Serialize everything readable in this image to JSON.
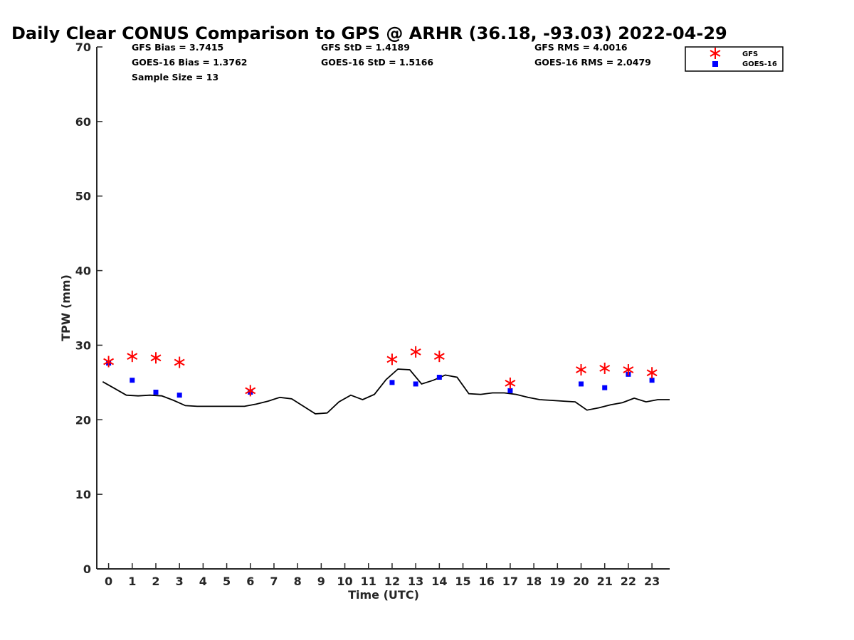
{
  "chart_data": {
    "type": "scatter",
    "title": "Daily Clear CONUS Comparison to GPS @ ARHR (36.18, -93.03) 2022-04-29",
    "xlabel": "Time (UTC)",
    "ylabel": "TPW (mm)",
    "xlim": [
      -0.5,
      23.75
    ],
    "ylim": [
      0,
      70
    ],
    "x_ticks": [
      0,
      1,
      2,
      3,
      4,
      5,
      6,
      7,
      8,
      9,
      10,
      11,
      12,
      13,
      14,
      15,
      16,
      17,
      18,
      19,
      20,
      21,
      22,
      23
    ],
    "y_ticks": [
      0,
      10,
      20,
      30,
      40,
      50,
      60,
      70
    ],
    "grid": false,
    "legend_position": "top-right",
    "stats": [
      [
        "GFS Bias = 3.7415",
        "GOES-16 Bias = 1.3762",
        "Sample Size = 13"
      ],
      [
        "GFS StD = 1.4189",
        "GOES-16 StD = 1.5166"
      ],
      [
        "GFS RMS = 4.0016",
        "GOES-16 RMS = 2.0479"
      ]
    ],
    "legend": [
      "GFS",
      "GOES-16"
    ],
    "series": [
      {
        "name": "GFS",
        "marker": "asterisk",
        "color": "#ff0000",
        "x": [
          0,
          1,
          2,
          3,
          6,
          12,
          13,
          14,
          17,
          20,
          21,
          22,
          23
        ],
        "y": [
          27.8,
          28.5,
          28.3,
          27.7,
          23.9,
          28.1,
          29.1,
          28.5,
          24.9,
          26.7,
          26.9,
          26.7,
          26.3
        ]
      },
      {
        "name": "GOES-16",
        "marker": "square",
        "color": "#0000ff",
        "x": [
          0,
          1,
          2,
          3,
          6,
          12,
          13,
          14,
          17,
          20,
          21,
          22,
          23
        ],
        "y": [
          27.6,
          25.3,
          23.7,
          23.3,
          23.7,
          25.0,
          24.8,
          25.7,
          23.9,
          24.8,
          24.3,
          26.1,
          25.3
        ]
      },
      {
        "marker": "line",
        "color": "#000000",
        "x": [
          -0.25,
          0.25,
          0.75,
          1.25,
          1.75,
          2.25,
          2.75,
          3.25,
          3.75,
          4.25,
          4.75,
          5.25,
          5.75,
          6.25,
          6.75,
          7.25,
          7.75,
          8.25,
          8.75,
          9.25,
          9.75,
          10.25,
          10.75,
          11.25,
          11.75,
          12.25,
          12.75,
          13.25,
          13.75,
          14.25,
          14.75,
          15.25,
          15.75,
          16.25,
          16.75,
          17.25,
          17.75,
          18.25,
          18.75,
          19.25,
          19.75,
          20.25,
          20.75,
          21.25,
          21.75,
          22.25,
          22.75,
          23.25,
          23.75
        ],
        "y": [
          25.1,
          24.2,
          23.3,
          23.2,
          23.3,
          23.2,
          22.6,
          21.9,
          21.8,
          21.8,
          21.8,
          21.8,
          21.8,
          22.1,
          22.5,
          23.0,
          22.8,
          21.8,
          20.8,
          20.9,
          22.4,
          23.3,
          22.7,
          23.4,
          25.4,
          26.8,
          26.7,
          24.8,
          25.3,
          26.0,
          25.7,
          23.5,
          23.4,
          23.6,
          23.6,
          23.4,
          23.0,
          22.7,
          22.6,
          22.5,
          22.4,
          21.3,
          21.6,
          22.0,
          22.3,
          22.9,
          22.4,
          22.7,
          22.7
        ]
      }
    ]
  }
}
